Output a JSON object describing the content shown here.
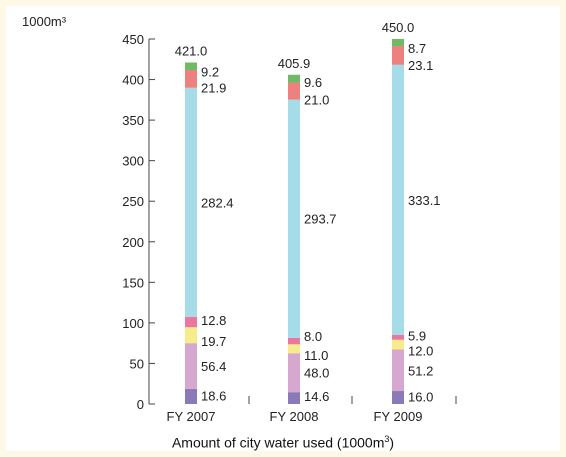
{
  "chart_data": {
    "type": "bar",
    "stacked": true,
    "unit_label": "1000m³",
    "xlabel": "Amount of city water used (1000m",
    "xlabel_sup": "3",
    "xlabel_tail": ")",
    "ylim": [
      0,
      450
    ],
    "yticks": [
      "0",
      "50",
      "100",
      "150",
      "200",
      "250",
      "300",
      "350",
      "400",
      "450"
    ],
    "categories": [
      "FY 2007",
      "FY 2008",
      "FY 2009"
    ],
    "totals": [
      "421.0",
      "405.9",
      "450.0"
    ],
    "series": [
      {
        "color": "#8a7bb8",
        "values": [
          18.6,
          14.6,
          16.0
        ]
      },
      {
        "color": "#d6a8d0",
        "values": [
          56.4,
          48.0,
          51.2
        ]
      },
      {
        "color": "#f7ec8c",
        "values": [
          19.7,
          11.0,
          12.0
        ]
      },
      {
        "color": "#e9779f",
        "values": [
          12.8,
          8.0,
          5.9
        ]
      },
      {
        "color": "#a6dce8",
        "values": [
          282.4,
          293.7,
          333.1
        ]
      },
      {
        "color": "#ee8080",
        "values": [
          21.9,
          21.0,
          23.1
        ]
      },
      {
        "color": "#6dbb64",
        "values": [
          9.2,
          9.6,
          8.7
        ]
      }
    ],
    "labels": [
      [
        "18.6",
        "14.6",
        "16.0"
      ],
      [
        "56.4",
        "48.0",
        "51.2"
      ],
      [
        "19.7",
        "11.0",
        "12.0"
      ],
      [
        "12.8",
        "8.0",
        "5.9"
      ],
      [
        "282.4",
        "293.7",
        "333.1"
      ],
      [
        "21.9",
        "21.0",
        "23.1"
      ],
      [
        "9.2",
        "9.6",
        "8.7"
      ]
    ]
  }
}
